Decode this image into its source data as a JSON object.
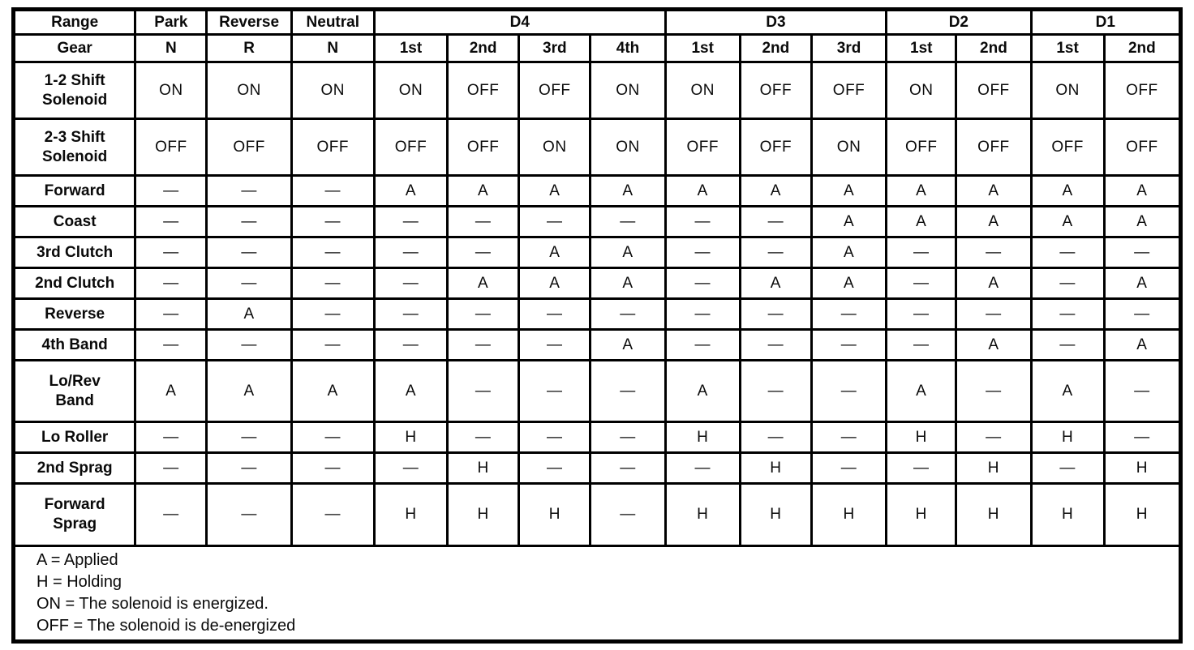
{
  "table": {
    "corner_label": "Range",
    "range_row": {
      "simple": [
        "Park",
        "Reverse",
        "Neutral"
      ],
      "groups": [
        {
          "label": "D4",
          "span": 4
        },
        {
          "label": "D3",
          "span": 3
        },
        {
          "label": "D2",
          "span": 2
        },
        {
          "label": "D1",
          "span": 2
        }
      ]
    },
    "gear_row": {
      "label": "Gear",
      "cells": [
        "N",
        "R",
        "N",
        "1st",
        "2nd",
        "3rd",
        "4th",
        "1st",
        "2nd",
        "3rd",
        "1st",
        "2nd",
        "1st",
        "2nd"
      ]
    },
    "rows": [
      {
        "label": "1-2 Shift\nSolenoid",
        "cells": [
          "ON",
          "ON",
          "ON",
          "ON",
          "OFF",
          "OFF",
          "ON",
          "ON",
          "OFF",
          "OFF",
          "ON",
          "OFF",
          "ON",
          "OFF"
        ]
      },
      {
        "label": "2-3 Shift\nSolenoid",
        "cells": [
          "OFF",
          "OFF",
          "OFF",
          "OFF",
          "OFF",
          "ON",
          "ON",
          "OFF",
          "OFF",
          "ON",
          "OFF",
          "OFF",
          "OFF",
          "OFF"
        ]
      },
      {
        "label": "Forward",
        "cells": [
          "—",
          "—",
          "—",
          "A",
          "A",
          "A",
          "A",
          "A",
          "A",
          "A",
          "A",
          "A",
          "A",
          "A"
        ]
      },
      {
        "label": "Coast",
        "cells": [
          "—",
          "—",
          "—",
          "—",
          "—",
          "—",
          "—",
          "—",
          "—",
          "A",
          "A",
          "A",
          "A",
          "A"
        ]
      },
      {
        "label": "3rd Clutch",
        "cells": [
          "—",
          "—",
          "—",
          "—",
          "—",
          "A",
          "A",
          "—",
          "—",
          "A",
          "—",
          "—",
          "—",
          "—"
        ]
      },
      {
        "label": "2nd Clutch",
        "cells": [
          "—",
          "—",
          "—",
          "—",
          "A",
          "A",
          "A",
          "—",
          "A",
          "A",
          "—",
          "A",
          "—",
          "A"
        ]
      },
      {
        "label": "Reverse",
        "cells": [
          "—",
          "A",
          "—",
          "—",
          "—",
          "—",
          "—",
          "—",
          "—",
          "—",
          "—",
          "—",
          "—",
          "—"
        ]
      },
      {
        "label": "4th  Band",
        "cells": [
          "—",
          "—",
          "—",
          "—",
          "—",
          "—",
          "A",
          "—",
          "—",
          "—",
          "—",
          "A",
          "—",
          "A"
        ]
      },
      {
        "label": "Lo/Rev\nBand",
        "cells": [
          "A",
          "A",
          "A",
          "A",
          "—",
          "—",
          "—",
          "A",
          "—",
          "—",
          "A",
          "—",
          "A",
          "—"
        ]
      },
      {
        "label": "Lo Roller",
        "cells": [
          "—",
          "—",
          "—",
          "H",
          "—",
          "—",
          "—",
          "H",
          "—",
          "—",
          "H",
          "—",
          "H",
          "—"
        ]
      },
      {
        "label": "2nd  Sprag",
        "cells": [
          "—",
          "—",
          "—",
          "—",
          "H",
          "—",
          "—",
          "—",
          "H",
          "—",
          "—",
          "H",
          "—",
          "H"
        ]
      },
      {
        "label": "Forward\nSprag",
        "cells": [
          "—",
          "—",
          "—",
          "H",
          "H",
          "H",
          "—",
          "H",
          "H",
          "H",
          "H",
          "H",
          "H",
          "H"
        ]
      }
    ]
  },
  "legend": {
    "lines": [
      "A = Applied",
      "H = Holding",
      "ON = The solenoid is energized.",
      "OFF = The solenoid is de-energized"
    ]
  }
}
